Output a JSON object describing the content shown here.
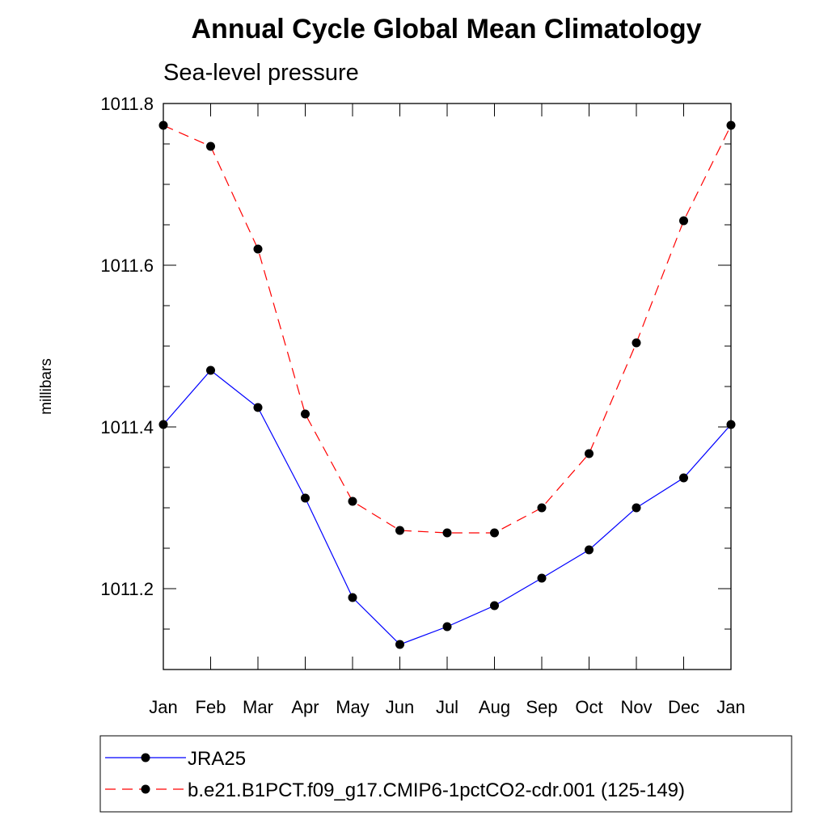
{
  "chart_data": {
    "type": "line",
    "title": "Annual Cycle Global Mean Climatology",
    "subtitle": "Sea-level pressure",
    "ylabel": "millibars",
    "xlabel": "",
    "categories": [
      "Jan",
      "Feb",
      "Mar",
      "Apr",
      "May",
      "Jun",
      "Jul",
      "Aug",
      "Sep",
      "Oct",
      "Nov",
      "Dec",
      "Jan"
    ],
    "ylim": [
      1011.1,
      1011.8
    ],
    "yticks": [
      1011.2,
      1011.4,
      1011.6,
      1011.8
    ],
    "ytick_labels": [
      "1011.2",
      "1011.4",
      "1011.6",
      "1011.8"
    ],
    "grid": false,
    "legend_position": "bottom",
    "series": [
      {
        "name": "JRA25",
        "color": "#0000ff",
        "line_style": "solid",
        "marker": "filled-circle",
        "values": [
          1011.403,
          1011.47,
          1011.424,
          1011.312,
          1011.189,
          1011.131,
          1011.153,
          1011.179,
          1011.213,
          1011.248,
          1011.3,
          1011.337,
          1011.403
        ]
      },
      {
        "name": "b.e21.B1PCT.f09_g17.CMIP6-1pctCO2-cdr.001 (125-149)",
        "color": "#ff0000",
        "line_style": "dashed",
        "marker": "filled-circle",
        "values": [
          1011.773,
          1011.747,
          1011.62,
          1011.416,
          1011.308,
          1011.272,
          1011.269,
          1011.269,
          1011.3,
          1011.367,
          1011.504,
          1011.655,
          1011.773
        ]
      }
    ]
  }
}
